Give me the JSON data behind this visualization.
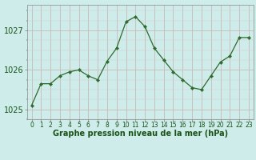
{
  "hours": [
    0,
    1,
    2,
    3,
    4,
    5,
    6,
    7,
    8,
    9,
    10,
    11,
    12,
    13,
    14,
    15,
    16,
    17,
    18,
    19,
    20,
    21,
    22,
    23
  ],
  "pressure": [
    1025.1,
    1025.65,
    1025.65,
    1025.85,
    1025.95,
    1026.0,
    1025.85,
    1025.75,
    1026.22,
    1026.55,
    1027.22,
    1027.35,
    1027.1,
    1026.55,
    1026.25,
    1025.95,
    1025.75,
    1025.55,
    1025.5,
    1025.85,
    1026.2,
    1026.35,
    1026.82,
    1026.82
  ],
  "line_color": "#2d6a2d",
  "marker": "D",
  "marker_size": 2.2,
  "bg_color": "#cdecea",
  "grid_color_v": "#c9b8b8",
  "grid_color_h": "#c9b8b8",
  "xlabel": "Graphe pression niveau de la mer (hPa)",
  "xlabel_color": "#1a5218",
  "xlabel_fontsize": 7,
  "yticks": [
    1025,
    1026,
    1027
  ],
  "ylim": [
    1024.75,
    1027.65
  ],
  "xlim": [
    -0.5,
    23.5
  ],
  "tick_label_color": "#1a5218",
  "y_tick_fontsize": 7,
  "x_tick_fontsize": 5.5
}
